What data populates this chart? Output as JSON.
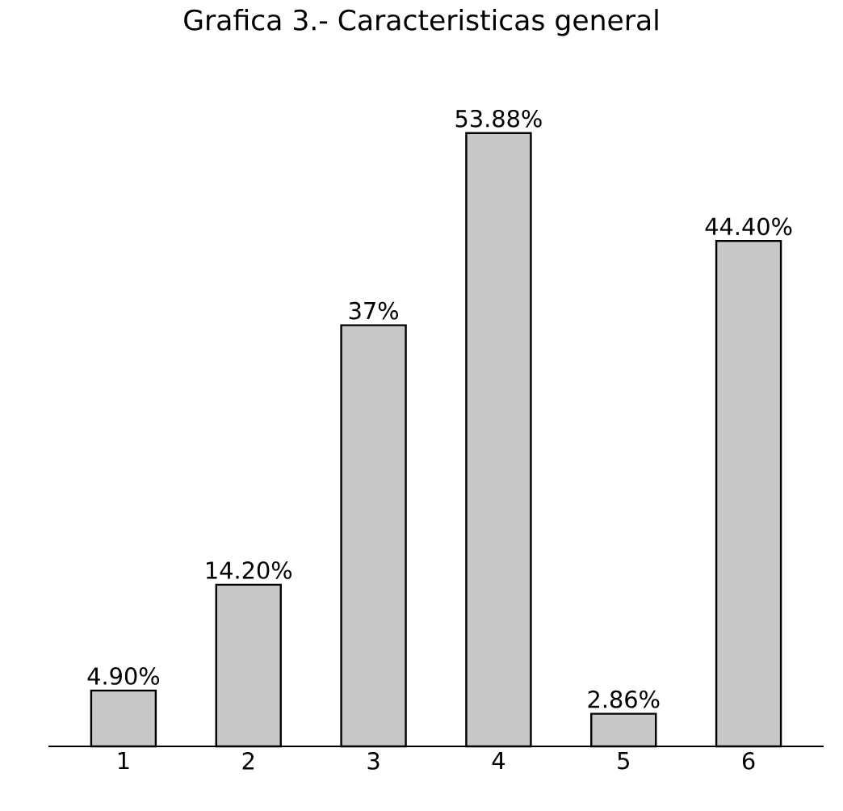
{
  "chart_data": {
    "type": "bar",
    "title": "Grafica 3.- Caracteristicas general",
    "categories": [
      "1",
      "2",
      "3",
      "4",
      "5",
      "6"
    ],
    "values": [
      4.9,
      14.2,
      37,
      53.88,
      2.86,
      44.4
    ],
    "value_labels": [
      "4.90%",
      "14.20%",
      "37%",
      "53.88%",
      "2.86%",
      "44.40%"
    ],
    "color": "#c8c8c8"
  }
}
